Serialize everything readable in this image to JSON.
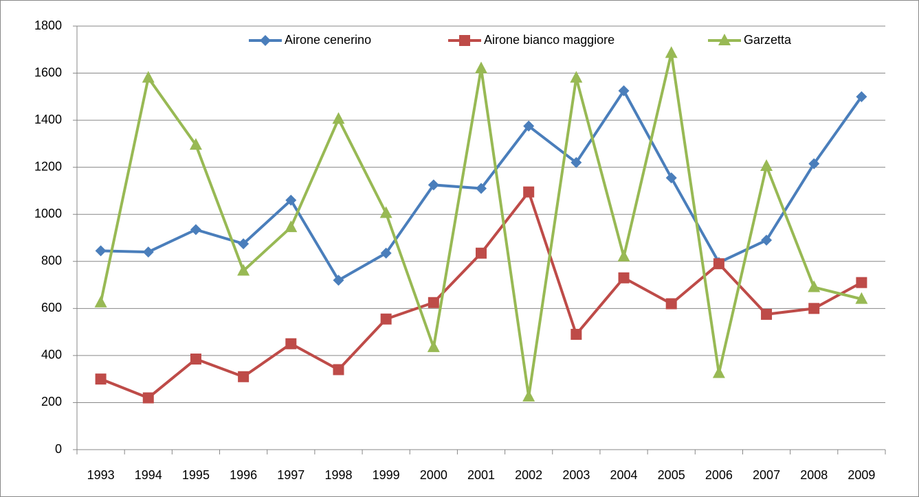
{
  "chart_data": {
    "type": "line",
    "categories": [
      "1993",
      "1994",
      "1995",
      "1996",
      "1997",
      "1998",
      "1999",
      "2000",
      "2001",
      "2002",
      "2003",
      "2004",
      "2005",
      "2006",
      "2007",
      "2008",
      "2009"
    ],
    "series": [
      {
        "name": "Airone cenerino",
        "color": "#4a7ebb",
        "marker": "diamond",
        "values": [
          845,
          840,
          935,
          875,
          1060,
          720,
          835,
          1125,
          1110,
          1375,
          1220,
          1525,
          1155,
          795,
          890,
          1215,
          1500
        ]
      },
      {
        "name": "Airone bianco maggiore",
        "color": "#be4b48",
        "marker": "square",
        "values": [
          300,
          220,
          385,
          310,
          450,
          340,
          555,
          625,
          835,
          1095,
          490,
          730,
          620,
          790,
          575,
          600,
          710
        ]
      },
      {
        "name": "Garzetta",
        "color": "#98b954",
        "marker": "triangle",
        "values": [
          625,
          1580,
          1295,
          760,
          945,
          1405,
          1005,
          435,
          1620,
          225,
          1580,
          820,
          1685,
          325,
          1205,
          690,
          640
        ]
      }
    ],
    "ylim": [
      0,
      1800
    ],
    "yticks": [
      0,
      200,
      400,
      600,
      800,
      1000,
      1200,
      1400,
      1600,
      1800
    ],
    "grid": true,
    "legend": "top"
  }
}
